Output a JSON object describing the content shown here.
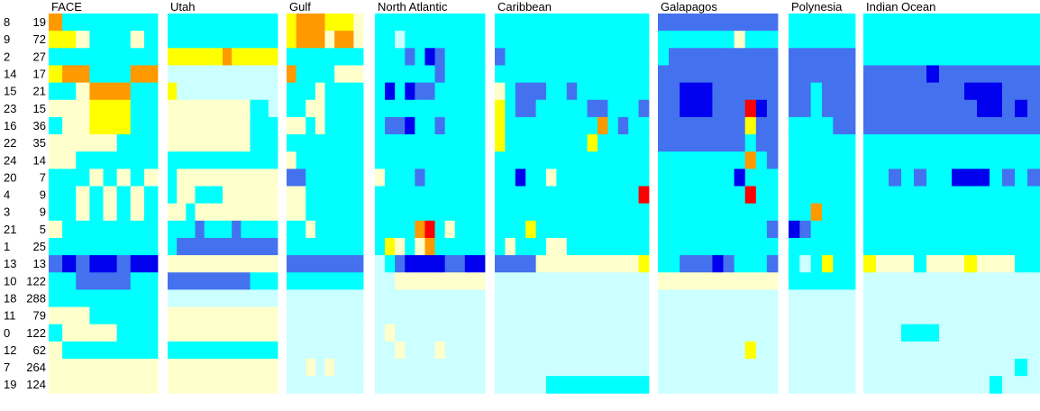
{
  "chart_data": {
    "type": "heatmap",
    "title": "",
    "xlabel": "",
    "ylabel": "",
    "rows": [
      {
        "id": "8",
        "count": "19"
      },
      {
        "id": "9",
        "count": "72"
      },
      {
        "id": "2",
        "count": "27"
      },
      {
        "id": "14",
        "count": "17"
      },
      {
        "id": "15",
        "count": "21"
      },
      {
        "id": "23",
        "count": "15"
      },
      {
        "id": "16",
        "count": "36"
      },
      {
        "id": "22",
        "count": "35"
      },
      {
        "id": "24",
        "count": "14"
      },
      {
        "id": "20",
        "count": "7"
      },
      {
        "id": "4",
        "count": "9"
      },
      {
        "id": "3",
        "count": "9"
      },
      {
        "id": "21",
        "count": "5"
      },
      {
        "id": "1",
        "count": "25"
      },
      {
        "id": "13",
        "count": "13"
      },
      {
        "id": "10",
        "count": "122"
      },
      {
        "id": "18",
        "count": "288"
      },
      {
        "id": "11",
        "count": "79"
      },
      {
        "id": "0",
        "count": "122"
      },
      {
        "id": "12",
        "count": "62"
      },
      {
        "id": "7",
        "count": "264"
      },
      {
        "id": "19",
        "count": "124"
      }
    ],
    "color_scale": {
      "0": "#ccffff",
      "1": "#ffffcc",
      "2": "#00ffff",
      "3": "#4472ee",
      "4": "#0000ee",
      "5": "#ffff00",
      "6": "#ff9900",
      "7": "#ff0000"
    },
    "groups": [
      {
        "name": "FACE",
        "columns": 8,
        "cells": [
          "62222222",
          "55122212",
          "22222222",
          "56622266",
          "22166622",
          "11155522",
          "21155522",
          "11111222",
          "11222222",
          "22212121",
          "22121212",
          "22121212",
          "12222222",
          "22222222",
          "34344344",
          "22333322",
          "22222222",
          "11122222",
          "21111222",
          "12222222",
          "11111111",
          "11111111"
        ]
      },
      {
        "name": "Utah",
        "columns": 12,
        "cells": [
          "222222222222",
          "222222222222",
          "555555655555",
          "000000000000",
          "500000000000",
          "111111111220",
          "111111111222",
          "111111111222",
          "222222222222",
          "211111111111",
          "211222111111",
          "112111111111",
          "222322232222",
          "233333333333",
          "111111111111",
          "333333333222",
          "000000000000",
          "111111111111",
          "111111111111",
          "222222222222",
          "111111111111",
          "111111111111"
        ]
      },
      {
        "name": "Gulf",
        "columns": 8,
        "cells": [
          "56665551",
          "56661661",
          "22222222",
          "62222111",
          "22212222",
          "22112222",
          "11212222",
          "22222222",
          "12222222",
          "33222222",
          "11222222",
          "11222222",
          "22122222",
          "22222222",
          "33333333",
          "22222222",
          "00000000",
          "00000000",
          "00000000",
          "00000000",
          "00101000",
          "00000000"
        ]
      },
      {
        "name": "North Atlantic",
        "columns": 11,
        "cells": [
          "22222222222",
          "22022222222",
          "22232432222",
          "22222232222",
          "24243322222",
          "22222222222",
          "23342232222",
          "22222222222",
          "22222222222",
          "12223222222",
          "22222222222",
          "22222222222",
          "22226721222",
          "25121622222",
          "02344443344",
          "00111111111",
          "00000000000",
          "00000000000",
          "01000000000",
          "00100010000",
          "00000000000",
          "00000000000"
        ]
      },
      {
        "name": "Caribbean",
        "columns": 15,
        "cells": [
          "222222222222222",
          "222222222222222",
          "322222222222222",
          "222222222222222",
          "123332232222222",
          "523322222332223",
          "522222222262322",
          "522222222522222",
          "222222222222222",
          "224221222222222",
          "222222222222227",
          "222222222222222",
          "222522222222222",
          "212221122222222",
          "333311111111115",
          "000000000000000",
          "000000000000000",
          "000000000000000",
          "000000000000000",
          "000000000000000",
          "000000000000000",
          "000002222222222"
        ]
      },
      {
        "name": "Galapagos",
        "columns": 11,
        "cells": [
          "33333333333",
          "22222221222",
          "23333333333",
          "33333333333",
          "33444333333",
          "33444333743",
          "33333333533",
          "33333333233",
          "22222222623",
          "22222224222",
          "22222222722",
          "22222222222",
          "22222222223",
          "22222222222",
          "22333432223",
          "11111111111",
          "00000000000",
          "00000000000",
          "00000000000",
          "00000000500",
          "00000000000",
          "00000000000"
        ]
      },
      {
        "name": "Polynesia",
        "columns": 6,
        "cells": [
          "222222",
          "222222",
          "333333",
          "333333",
          "332333",
          "332333",
          "222233",
          "222222",
          "222222",
          "222222",
          "222222",
          "226222",
          "432222",
          "222222",
          "202522",
          "222222",
          "000000",
          "000000",
          "000000",
          "000000",
          "000000",
          "000000"
        ]
      },
      {
        "name": "Indian Ocean",
        "columns": 14,
        "cells": [
          "22222222222222",
          "22222222222222",
          "22222222222222",
          "33333433333333",
          "33333333444333",
          "33333333344343",
          "33333333333333",
          "22222222222222",
          "22222222222222",
          "22323224442323",
          "22222222222222",
          "22222222222222",
          "22222222222222",
          "22222222222222",
          "51112111511122",
          "00000000000000",
          "00000000000000",
          "00000000000000",
          "00022200000000",
          "00000000000000",
          "00000000000020",
          "00000000002000"
        ]
      }
    ]
  }
}
